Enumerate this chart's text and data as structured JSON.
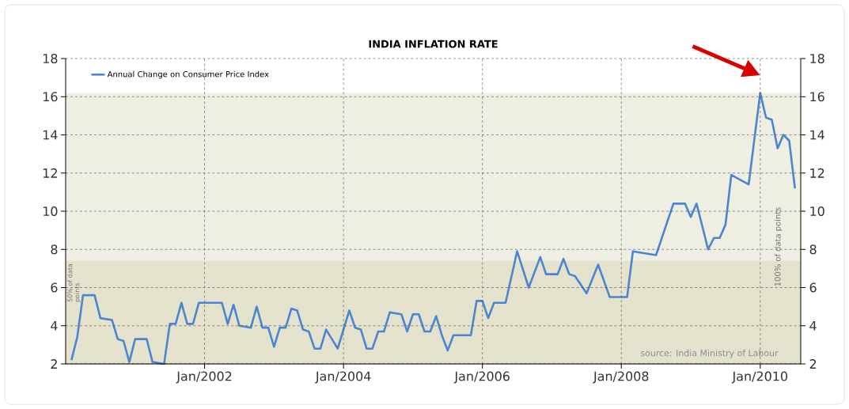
{
  "chart_data": {
    "type": "line",
    "title": "INDIA INFLATION RATE",
    "x": [
      "2000-02",
      "2000-03",
      "2000-04",
      "2000-06",
      "2000-07",
      "2000-09",
      "2000-10",
      "2000-11",
      "2000-12",
      "2001-01",
      "2001-03",
      "2001-04",
      "2001-06",
      "2001-07",
      "2001-08",
      "2001-09",
      "2001-10",
      "2001-11",
      "2001-12",
      "2002-04",
      "2002-05",
      "2002-06",
      "2002-07",
      "2002-09",
      "2002-10",
      "2002-11",
      "2002-12",
      "2003-01",
      "2003-02",
      "2003-03",
      "2003-04",
      "2003-05",
      "2003-06",
      "2003-07",
      "2003-08",
      "2003-09",
      "2003-10",
      "2003-12",
      "2004-02",
      "2004-03",
      "2004-04",
      "2004-05",
      "2004-06",
      "2004-07",
      "2004-08",
      "2004-09",
      "2004-11",
      "2004-12",
      "2005-01",
      "2005-02",
      "2005-03",
      "2005-04",
      "2005-05",
      "2005-06",
      "2005-07",
      "2005-08",
      "2005-11",
      "2005-12",
      "2006-01",
      "2006-02",
      "2006-03",
      "2006-05",
      "2006-07",
      "2006-09",
      "2006-11",
      "2006-12",
      "2007-02",
      "2007-03",
      "2007-04",
      "2007-05",
      "2007-07",
      "2007-09",
      "2007-11",
      "2008-02",
      "2008-03",
      "2008-07",
      "2008-10",
      "2008-12",
      "2009-01",
      "2009-02",
      "2009-04",
      "2009-05",
      "2009-06",
      "2009-07",
      "2009-08",
      "2009-11",
      "2010-01",
      "2010-02",
      "2010-03",
      "2010-04",
      "2010-05",
      "2010-06",
      "2010-07"
    ],
    "series": [
      {
        "name": "Annual Change on Consumer Price Index",
        "color": "#4a86d0",
        "values": [
          2.2,
          3.4,
          5.6,
          5.6,
          4.4,
          4.3,
          3.3,
          3.2,
          2.1,
          3.3,
          3.3,
          2.1,
          2.0,
          4.1,
          4.1,
          5.2,
          4.1,
          4.1,
          5.2,
          5.2,
          4.1,
          5.1,
          4.0,
          3.9,
          5.0,
          3.9,
          3.9,
          2.9,
          3.9,
          3.9,
          4.9,
          4.8,
          3.8,
          3.7,
          2.8,
          2.8,
          3.8,
          2.8,
          4.8,
          3.9,
          3.8,
          2.8,
          2.8,
          3.7,
          3.7,
          4.7,
          4.6,
          3.7,
          4.6,
          4.6,
          3.7,
          3.7,
          4.5,
          3.5,
          2.7,
          3.5,
          3.5,
          5.3,
          5.3,
          4.4,
          5.2,
          5.2,
          7.9,
          6.0,
          7.6,
          6.7,
          6.7,
          7.5,
          6.7,
          6.6,
          5.7,
          7.2,
          5.5,
          5.5,
          7.9,
          7.7,
          10.4,
          10.4,
          9.7,
          10.4,
          8.0,
          8.6,
          8.6,
          9.3,
          11.9,
          11.4,
          16.2,
          14.9,
          14.8,
          13.3,
          14.0,
          13.7,
          11.2
        ]
      }
    ],
    "xlim": [
      "2000-01",
      "2010-08"
    ],
    "xticks": [
      {
        "value": "2002-01",
        "label": "Jan/2002"
      },
      {
        "value": "2004-01",
        "label": "Jan/2004"
      },
      {
        "value": "2006-01",
        "label": "Jan/2006"
      },
      {
        "value": "2008-01",
        "label": "Jan/2008"
      },
      {
        "value": "2010-01",
        "label": "Jan/2010"
      }
    ],
    "ylim": [
      2,
      18
    ],
    "yticks": [
      2,
      4,
      6,
      8,
      10,
      12,
      14,
      16,
      18
    ],
    "y2lim": [
      2,
      18
    ],
    "y2ticks": [
      2,
      4,
      6,
      8,
      10,
      12,
      14,
      16,
      18
    ],
    "bands": [
      {
        "axis": "y",
        "from": 2,
        "to": 16.2,
        "label": "100% of data points",
        "color": "#efeee3"
      },
      {
        "axis": "y",
        "from": 2,
        "to": 7.4,
        "label": "50% of data points",
        "color": "#e4e2cc"
      }
    ],
    "annotations": [
      "source: India Ministry of Labour"
    ],
    "grid": true,
    "legend": "top left",
    "marker": "none",
    "line_style": "solid"
  }
}
